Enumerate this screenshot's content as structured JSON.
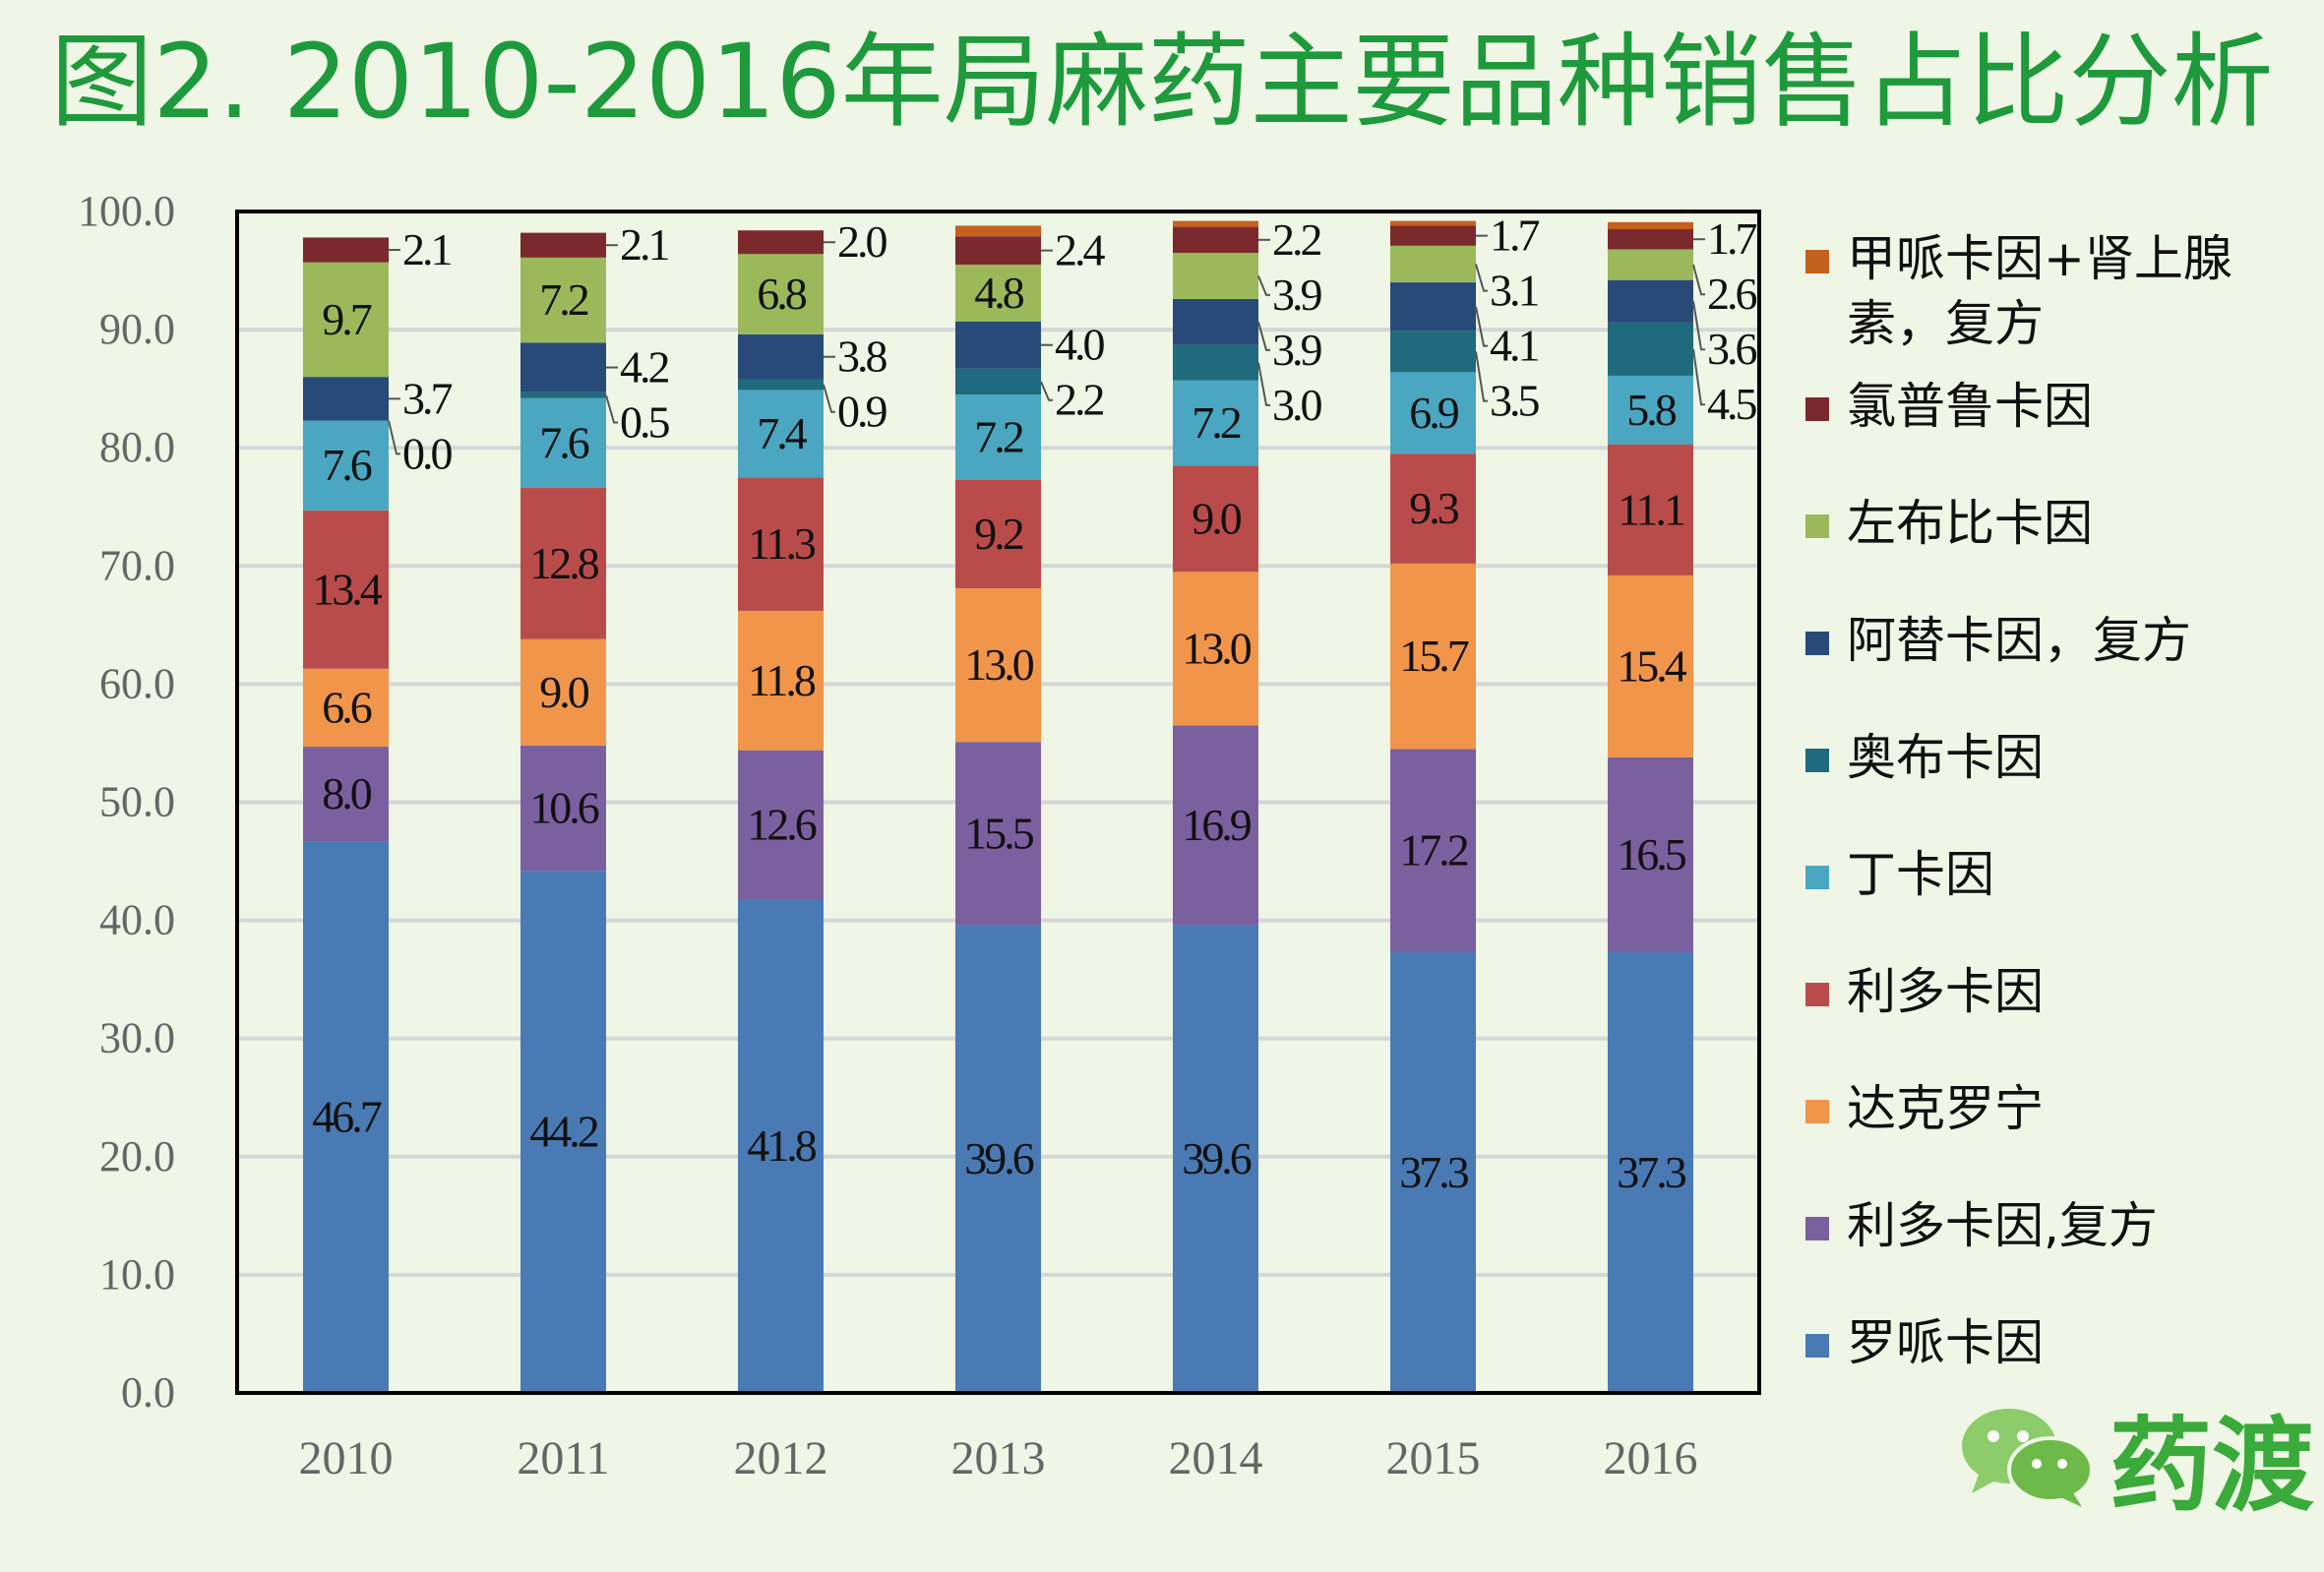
{
  "chart_data": {
    "type": "bar",
    "stacked": true,
    "title": "图2. 2010-2016年局麻药主要品种销售占比分析",
    "xlabel": "",
    "ylabel": "",
    "ylim": [
      0,
      100
    ],
    "yticks": [
      "0.0",
      "10.0",
      "20.0",
      "30.0",
      "40.0",
      "50.0",
      "60.0",
      "70.0",
      "80.0",
      "90.0",
      "100.0"
    ],
    "grid": true,
    "legend_position": "right",
    "categories": [
      "2010",
      "2011",
      "2012",
      "2013",
      "2014",
      "2015",
      "2016"
    ],
    "series": [
      {
        "name": "罗哌卡因",
        "color": "#4a7ab4",
        "values": [
          46.7,
          44.2,
          41.8,
          39.6,
          39.6,
          37.3,
          37.3
        ],
        "labeled": true
      },
      {
        "name": "利多卡因,复方",
        "color": "#7b60a0",
        "values": [
          8.0,
          10.6,
          12.6,
          15.5,
          16.9,
          17.2,
          16.5
        ],
        "labeled": true
      },
      {
        "name": "达克罗宁",
        "color": "#f0954a",
        "values": [
          6.6,
          9.0,
          11.8,
          13.0,
          13.0,
          15.7,
          15.4
        ],
        "labeled": true
      },
      {
        "name": "利多卡因",
        "color": "#b94c4b",
        "values": [
          13.4,
          12.8,
          11.3,
          9.2,
          9.0,
          9.3,
          11.1
        ],
        "labeled": true
      },
      {
        "name": "丁卡因",
        "color": "#4aa6c1",
        "values": [
          7.6,
          7.6,
          7.4,
          7.2,
          7.2,
          6.9,
          5.8
        ],
        "labeled": true
      },
      {
        "name": "奥布卡因",
        "color": "#206a7e",
        "values": [
          0.0,
          0.5,
          0.9,
          2.2,
          3.0,
          3.5,
          4.5
        ],
        "labeled": true
      },
      {
        "name": "阿替卡因，复方",
        "color": "#284a78",
        "values": [
          3.7,
          4.2,
          3.8,
          4.0,
          3.9,
          4.1,
          3.6
        ],
        "labeled": true
      },
      {
        "name": "左布比卡因",
        "color": "#9bb95a",
        "values": [
          9.7,
          7.2,
          6.8,
          4.8,
          3.9,
          3.1,
          2.6
        ],
        "labeled": true
      },
      {
        "name": "氯普鲁卡因",
        "color": "#7a2a2c",
        "values": [
          2.1,
          2.1,
          2.0,
          2.4,
          2.2,
          1.7,
          1.7
        ],
        "labeled": true
      },
      {
        "name": "甲哌卡因+肾上腺素，复方",
        "color": "#c5601e",
        "values": [
          0.0,
          0.0,
          0.0,
          0.9,
          0.5,
          0.4,
          0.6
        ],
        "labeled": false
      }
    ]
  },
  "logo": {
    "text": "药渡",
    "icon": "wechat-icon",
    "color": "#3aaa3a"
  }
}
